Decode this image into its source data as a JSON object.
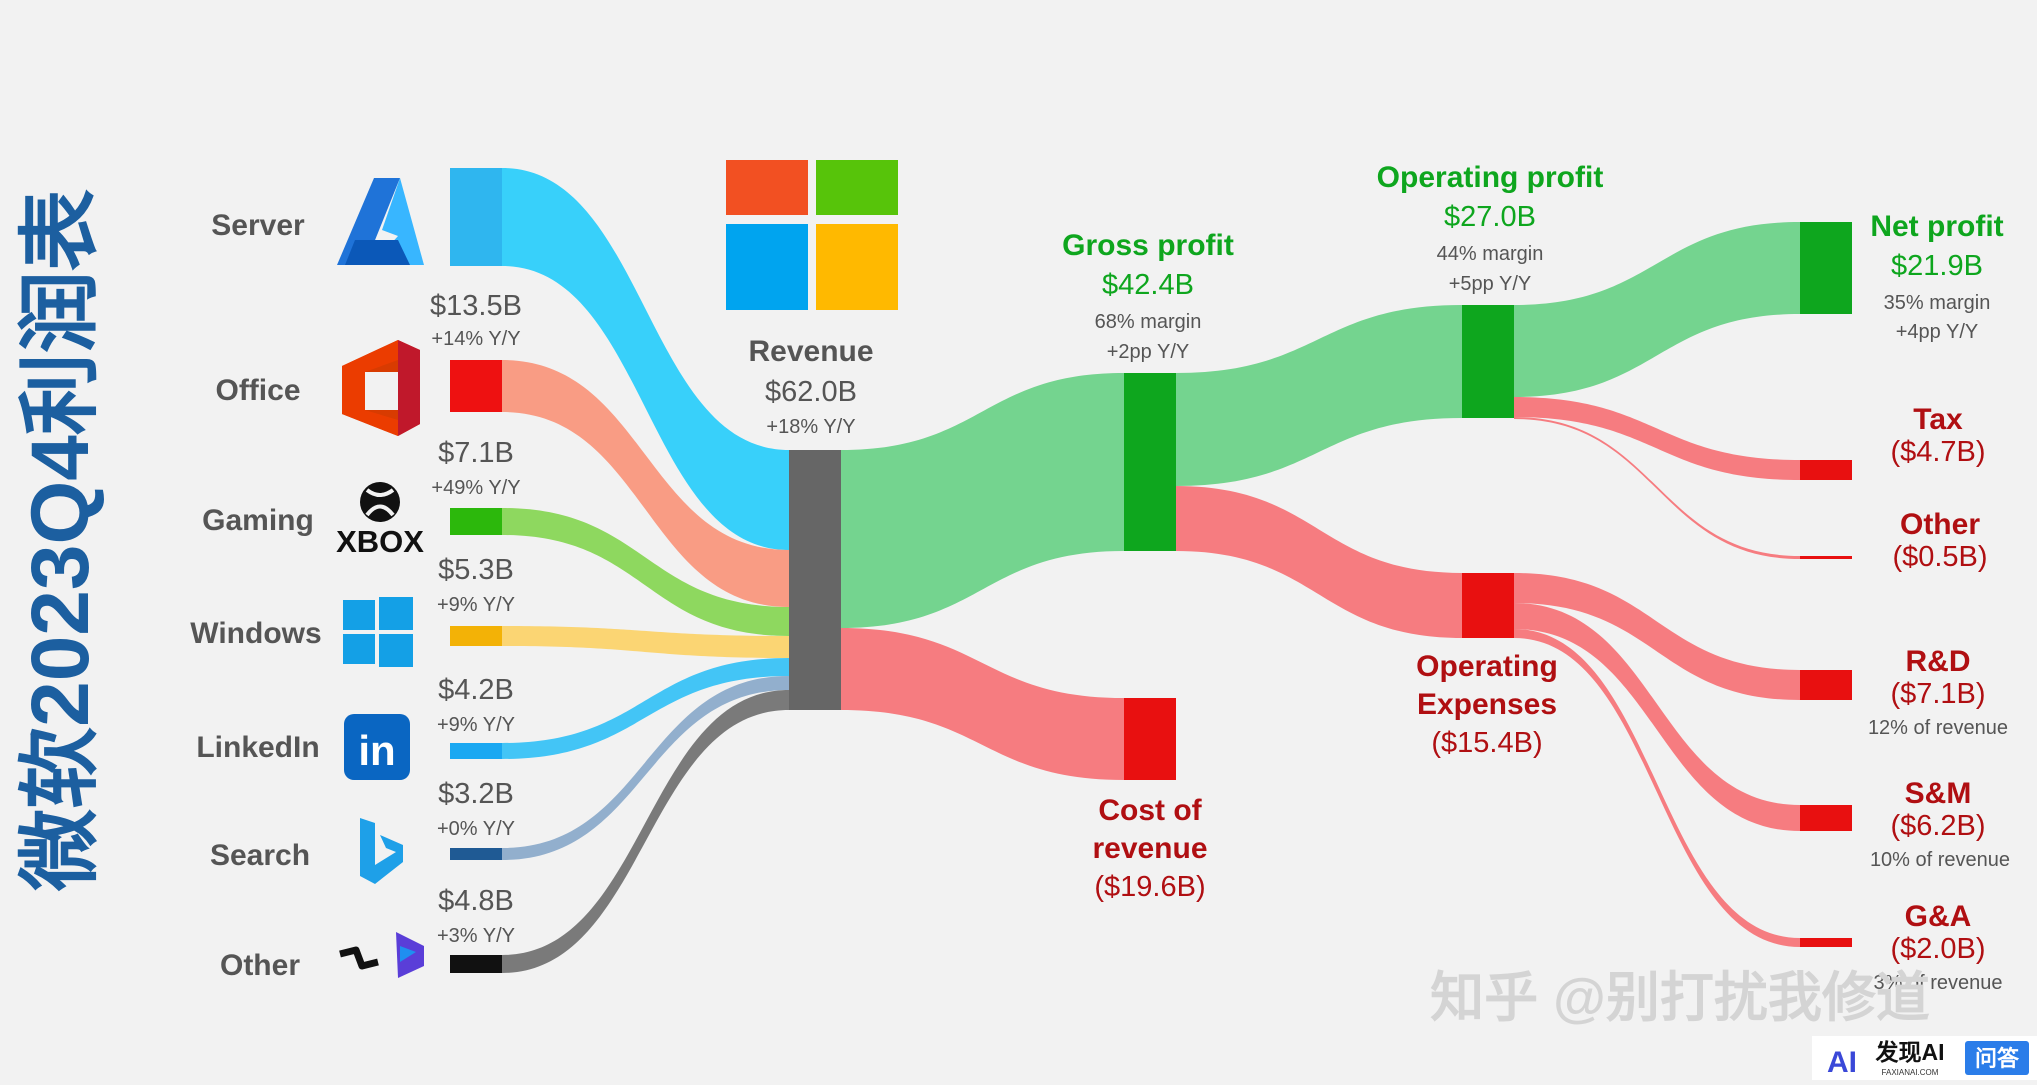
{
  "page_title": "微软2023Q4利润表",
  "colors": {
    "profit": "#0ea61e",
    "profit_flow": "#74d48f",
    "cost": "#e81010",
    "cost_flow": "#f67c80",
    "cost_text": "#b00f12",
    "revenue_node": "#666666",
    "label_gray": "#555555",
    "title_blue": "#1c5fa0"
  },
  "segments": [
    {
      "name": "Server",
      "value_label": "",
      "growth_label": "",
      "color": "#2fb6ef",
      "flow_color": "#38d0fa",
      "icon": "azure-icon"
    },
    {
      "name": "Office",
      "value_label": "$13.5B",
      "growth_label": "+14% Y/Y",
      "color": "#ee1111",
      "flow_color": "#f99c84",
      "icon": "office-icon"
    },
    {
      "name": "Gaming",
      "value_label": "$7.1B",
      "growth_label": "+49% Y/Y",
      "color": "#2cb80c",
      "flow_color": "#8ed85f",
      "icon": "xbox-icon"
    },
    {
      "name": "Windows",
      "value_label": "$5.3B",
      "growth_label": "+9% Y/Y",
      "color": "#f3b206",
      "flow_color": "#fbd573",
      "icon": "windows-icon"
    },
    {
      "name": "LinkedIn",
      "value_label": "$4.2B",
      "growth_label": "+9% Y/Y",
      "color": "#1aa8f2",
      "flow_color": "#43c5f6",
      "icon": "linkedin-icon"
    },
    {
      "name": "Search",
      "value_label": "$3.2B",
      "growth_label": "+0% Y/Y",
      "color": "#1f5a94",
      "flow_color": "#92afcd",
      "icon": "bing-icon"
    },
    {
      "name": "Other",
      "value_label": "$4.8B",
      "growth_label": "+3% Y/Y",
      "color": "#111111",
      "flow_color": "#7a7a7a",
      "icon": "dynamics-icon"
    }
  ],
  "nodes": {
    "revenue": {
      "title": "Revenue",
      "value": "$62.0B",
      "sub1": "+18% Y/Y"
    },
    "gross_profit": {
      "title": "Gross profit",
      "value": "$42.4B",
      "sub1": "68% margin",
      "sub2": "+2pp Y/Y"
    },
    "cost_of_revenue": {
      "title1": "Cost of",
      "title2": "revenue",
      "value": "($19.6B)"
    },
    "operating_profit": {
      "title": "Operating profit",
      "value": "$27.0B",
      "sub1": "44% margin",
      "sub2": "+5pp Y/Y"
    },
    "operating_expenses": {
      "title1": "Operating",
      "title2": "Expenses",
      "value": "($15.4B)"
    },
    "net_profit": {
      "title": "Net profit",
      "value": "$21.9B",
      "sub1": "35% margin",
      "sub2": "+4pp Y/Y"
    },
    "tax": {
      "title": "Tax",
      "value": "($4.7B)"
    },
    "other_exp": {
      "title": "Other",
      "value": "($0.5B)"
    },
    "rnd": {
      "title": "R&D",
      "value": "($7.1B)",
      "sub1": "12% of revenue"
    },
    "snm": {
      "title": "S&M",
      "value": "($6.2B)",
      "sub1": "10% of revenue"
    },
    "gna": {
      "title": "G&A",
      "value": "($2.0B)",
      "sub1": "3% of revenue"
    }
  },
  "chart_data": {
    "type": "sankey",
    "title": "微软2023Q4利润表",
    "unit": "$B",
    "nodes": [
      "Server",
      "Office",
      "Gaming",
      "Windows",
      "LinkedIn",
      "Search",
      "Other",
      "Revenue",
      "Gross profit",
      "Cost of revenue",
      "Operating profit",
      "Operating Expenses",
      "Net profit",
      "Tax",
      "Other",
      "R&D",
      "S&M",
      "G&A"
    ],
    "links": [
      {
        "source": "Server",
        "target": "Revenue",
        "value": 23.9
      },
      {
        "source": "Office",
        "target": "Revenue",
        "value": 13.5
      },
      {
        "source": "Gaming",
        "target": "Revenue",
        "value": 7.1
      },
      {
        "source": "Windows",
        "target": "Revenue",
        "value": 5.3
      },
      {
        "source": "LinkedIn",
        "target": "Revenue",
        "value": 4.2
      },
      {
        "source": "Search",
        "target": "Revenue",
        "value": 3.2
      },
      {
        "source": "Other",
        "target": "Revenue",
        "value": 4.8
      },
      {
        "source": "Revenue",
        "target": "Gross profit",
        "value": 42.4
      },
      {
        "source": "Revenue",
        "target": "Cost of revenue",
        "value": 19.6
      },
      {
        "source": "Gross profit",
        "target": "Operating profit",
        "value": 27.0
      },
      {
        "source": "Gross profit",
        "target": "Operating Expenses",
        "value": 15.4
      },
      {
        "source": "Operating profit",
        "target": "Net profit",
        "value": 21.9
      },
      {
        "source": "Operating profit",
        "target": "Tax",
        "value": 4.7
      },
      {
        "source": "Operating profit",
        "target": "Other",
        "value": 0.5
      },
      {
        "source": "Operating Expenses",
        "target": "R&D",
        "value": 7.1
      },
      {
        "source": "Operating Expenses",
        "target": "S&M",
        "value": 6.2
      },
      {
        "source": "Operating Expenses",
        "target": "G&A",
        "value": 2.0
      }
    ]
  },
  "watermark": {
    "text": "知乎 @别打扰我修道"
  },
  "badge": {
    "brand": "发现AI",
    "domain": "FAXIANAI.COM",
    "tag": "问答",
    "logo": "AI"
  }
}
